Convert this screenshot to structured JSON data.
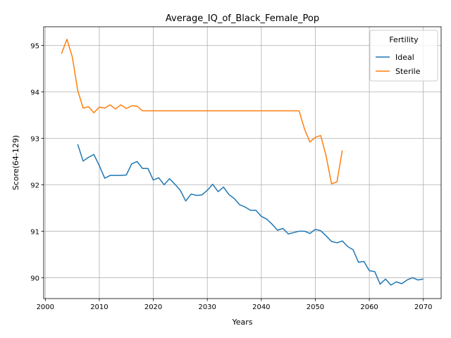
{
  "chart_data": {
    "type": "line",
    "title": "Average_IQ_of_Black_Female_Pop",
    "xlabel": "Years",
    "ylabel": "Score(64-129)",
    "xlim": [
      1999.7,
      2073.3
    ],
    "ylim": [
      89.55,
      95.4
    ],
    "xticks": [
      2000,
      2010,
      2020,
      2030,
      2040,
      2050,
      2060,
      2070
    ],
    "yticks": [
      90,
      91,
      92,
      93,
      94,
      95
    ],
    "grid": true,
    "legend": {
      "title": "Fertility",
      "placement": "top-right"
    },
    "series": [
      {
        "name": "Ideal",
        "color": "#1f77b4",
        "x": [
          2006,
          2007,
          2008,
          2009,
          2010,
          2011,
          2012,
          2013,
          2014,
          2015,
          2016,
          2017,
          2018,
          2019,
          2020,
          2021,
          2022,
          2023,
          2024,
          2025,
          2026,
          2027,
          2028,
          2029,
          2030,
          2031,
          2032,
          2033,
          2034,
          2035,
          2036,
          2037,
          2038,
          2039,
          2040,
          2041,
          2042,
          2043,
          2044,
          2045,
          2046,
          2047,
          2048,
          2049,
          2050,
          2051,
          2052,
          2053,
          2054,
          2055,
          2056,
          2057,
          2058,
          2059,
          2060,
          2061,
          2062,
          2063,
          2064,
          2065,
          2066,
          2067,
          2068,
          2069,
          2070
        ],
        "y": [
          92.87,
          92.51,
          92.59,
          92.65,
          92.41,
          92.14,
          92.2,
          92.2,
          92.2,
          92.21,
          92.45,
          92.5,
          92.35,
          92.35,
          92.1,
          92.15,
          92.0,
          92.13,
          92.01,
          91.88,
          91.65,
          91.8,
          91.77,
          91.78,
          91.88,
          92.01,
          91.85,
          91.95,
          91.79,
          91.7,
          91.57,
          91.52,
          91.45,
          91.45,
          91.32,
          91.26,
          91.15,
          91.02,
          91.06,
          90.94,
          90.97,
          91.0,
          91.0,
          90.95,
          91.04,
          91.01,
          90.9,
          90.78,
          90.75,
          90.79,
          90.67,
          90.6,
          90.33,
          90.35,
          90.15,
          90.13,
          89.86,
          89.97,
          89.84,
          89.91,
          89.87,
          89.95,
          90.0,
          89.95,
          89.97
        ]
      },
      {
        "name": "Sterile",
        "color": "#ff7f0e",
        "x": [
          2003,
          2004,
          2005,
          2006,
          2007,
          2008,
          2009,
          2010,
          2011,
          2012,
          2013,
          2014,
          2015,
          2016,
          2017,
          2018,
          2019,
          2020,
          2021,
          2022,
          2023,
          2024,
          2025,
          2026,
          2027,
          2028,
          2029,
          2030,
          2031,
          2032,
          2033,
          2034,
          2035,
          2036,
          2037,
          2038,
          2039,
          2040,
          2041,
          2042,
          2043,
          2044,
          2045,
          2046,
          2047,
          2048,
          2049,
          2050,
          2051,
          2052,
          2053,
          2054,
          2055
        ],
        "y": [
          94.82,
          95.13,
          94.75,
          94.03,
          93.65,
          93.68,
          93.55,
          93.67,
          93.65,
          93.72,
          93.63,
          93.72,
          93.64,
          93.7,
          93.69,
          93.59,
          93.59,
          93.59,
          93.59,
          93.59,
          93.59,
          93.59,
          93.59,
          93.59,
          93.59,
          93.59,
          93.59,
          93.59,
          93.59,
          93.59,
          93.59,
          93.59,
          93.59,
          93.59,
          93.59,
          93.59,
          93.59,
          93.59,
          93.59,
          93.59,
          93.59,
          93.59,
          93.59,
          93.59,
          93.59,
          93.2,
          92.92,
          93.02,
          93.06,
          92.62,
          92.02,
          92.06,
          92.74
        ]
      }
    ]
  }
}
